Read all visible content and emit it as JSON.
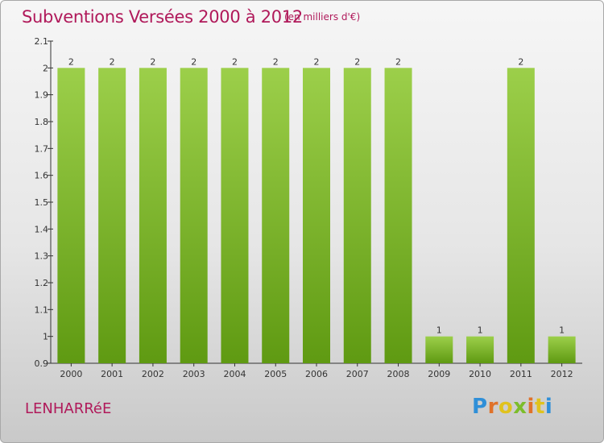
{
  "header": {
    "title": "Subventions Versées 2000 à 2012",
    "unit_note": "(en milliers d'€)"
  },
  "footer": {
    "commune": "LENHARRéE",
    "logo_text": "Proxiti"
  },
  "colors": {
    "accent": "#b0195a",
    "bar_top": "#9ccf4a",
    "bar_bottom": "#5f9a12"
  },
  "chart_data": {
    "type": "bar",
    "categories": [
      "2000",
      "2001",
      "2002",
      "2003",
      "2004",
      "2005",
      "2006",
      "2007",
      "2008",
      "2009",
      "2010",
      "2011",
      "2012"
    ],
    "values": [
      2,
      2,
      2,
      2,
      2,
      2,
      2,
      2,
      2,
      1,
      1,
      2,
      1
    ],
    "data_labels": [
      "2",
      "2",
      "2",
      "2",
      "2",
      "2",
      "2",
      "2",
      "2",
      "1",
      "1",
      "2",
      "1"
    ],
    "yticks": [
      "0.9",
      "1",
      "1.1",
      "1.2",
      "1.3",
      "1.4",
      "1.5",
      "1.6",
      "1.7",
      "1.8",
      "1.9",
      "2",
      "2.1"
    ],
    "ylim": [
      0.9,
      2.1
    ],
    "grid": false,
    "legend": "none"
  }
}
